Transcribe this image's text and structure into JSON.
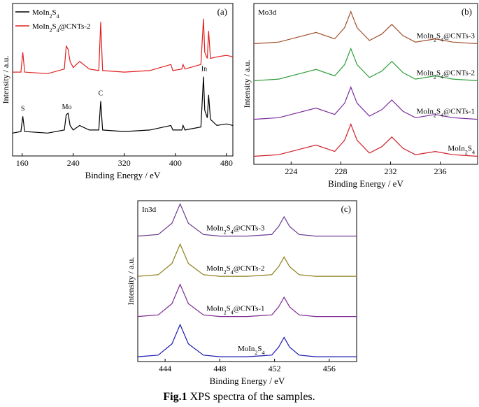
{
  "chart_data": [
    {
      "type": "line",
      "label": "(a)",
      "xlabel": "Binding Energy / eV",
      "ylabel": "Intensity / a.u.",
      "xlim": [
        145,
        490
      ],
      "xticks": [
        160,
        240,
        320,
        400,
        480
      ],
      "ylim": [
        0,
        100
      ],
      "legend": "upper left",
      "annotations": [
        {
          "text": "S",
          "x": 161
        },
        {
          "text": "Mo",
          "x": 230
        },
        {
          "text": "C",
          "x": 283
        },
        {
          "text": "In",
          "x": 445
        }
      ],
      "series": [
        {
          "name": "MoIn2S4",
          "color": "#000000",
          "x": [
            145,
            158,
            161,
            164,
            200,
            226,
            229,
            232,
            235,
            240,
            250,
            265,
            280,
            283,
            286,
            320,
            360,
            393,
            396,
            410,
            412,
            415,
            440,
            444,
            446,
            450,
            452,
            455,
            465,
            480,
            490
          ],
          "values": [
            15,
            16,
            26,
            16,
            15,
            17,
            27,
            28,
            20,
            17,
            20,
            17,
            17,
            36,
            17,
            16,
            17,
            20,
            17,
            17,
            20,
            17,
            19,
            52,
            30,
            25,
            40,
            24,
            20,
            21,
            20
          ]
        },
        {
          "name": "MoIn2S4@CNTs-2",
          "color": "#e02020",
          "x": [
            145,
            158,
            161,
            164,
            200,
            226,
            229,
            232,
            235,
            240,
            250,
            265,
            280,
            283,
            286,
            320,
            360,
            393,
            396,
            410,
            412,
            415,
            440,
            444,
            446,
            450,
            452,
            455,
            465,
            480,
            490
          ],
          "values": [
            55,
            55,
            68,
            55,
            54,
            57,
            72,
            70,
            62,
            58,
            62,
            57,
            56,
            88,
            56,
            55,
            56,
            60,
            56,
            57,
            60,
            57,
            60,
            90,
            68,
            64,
            82,
            64,
            65,
            66,
            65
          ]
        }
      ]
    },
    {
      "type": "line",
      "label": "(b)",
      "title": "Mo3d",
      "xlabel": "Binding Energy / eV",
      "ylabel": "Intensity / a.u.",
      "xlim": [
        221,
        239
      ],
      "xticks": [
        224,
        228,
        232,
        236
      ],
      "ylim": [
        0,
        100
      ],
      "series": [
        {
          "name": "MoIn2S4@CNTs-3",
          "color": "#a0522d",
          "x": [
            221,
            223,
            224.5,
            226,
            227.5,
            228.3,
            228.8,
            229.3,
            230.3,
            231.3,
            232.1,
            233,
            234,
            235.6,
            237,
            239
          ],
          "values": [
            75,
            76,
            79,
            82,
            78,
            85,
            95,
            85,
            77,
            81,
            87,
            80,
            76,
            78,
            76,
            75
          ]
        },
        {
          "name": "MoIn2S4@CNTs-2",
          "color": "#2e9e3a",
          "x": [
            221,
            223,
            224.5,
            226,
            227.5,
            228.3,
            228.8,
            229.3,
            230.3,
            231.3,
            232.1,
            233,
            234,
            235.6,
            237,
            239
          ],
          "values": [
            52,
            53,
            56,
            59,
            55,
            62,
            72,
            62,
            54,
            58,
            64,
            57,
            53,
            55,
            53,
            52
          ]
        },
        {
          "name": "MoIn2S4@CNTs-1",
          "color": "#7b2a9e",
          "x": [
            221,
            223,
            224.5,
            226,
            227.5,
            228.3,
            228.8,
            229.3,
            230.3,
            231.3,
            232.1,
            233,
            234,
            235.6,
            237,
            239
          ],
          "values": [
            28,
            29,
            32,
            35,
            31,
            38,
            48,
            38,
            30,
            34,
            40,
            33,
            29,
            31,
            29,
            28
          ]
        },
        {
          "name": "MoIn2S4",
          "color": "#d0202a",
          "x": [
            221,
            223,
            224.5,
            226,
            227.5,
            228.3,
            228.8,
            229.3,
            230.3,
            231.3,
            232.1,
            233,
            234,
            235.6,
            237,
            239
          ],
          "values": [
            5,
            6,
            9,
            12,
            8,
            15,
            25,
            15,
            7,
            11,
            17,
            10,
            6,
            8,
            6,
            5
          ]
        }
      ]
    },
    {
      "type": "line",
      "label": "(c)",
      "title": "In3d",
      "xlabel": "Binding Energy / eV",
      "ylabel": "Intensity / a.u.",
      "xlim": [
        442,
        458
      ],
      "xticks": [
        444,
        448,
        452,
        456
      ],
      "ylim": [
        0,
        100
      ],
      "series": [
        {
          "name": "MoIn2S4@CNTs-3",
          "color": "#6b3a8e",
          "x": [
            442,
            443.5,
            444.5,
            445.1,
            445.7,
            446.8,
            448,
            450,
            451.8,
            452.3,
            452.7,
            453.1,
            453.8,
            455,
            458
          ],
          "values": [
            78,
            79,
            86,
            98,
            86,
            79,
            78,
            78,
            79,
            84,
            90,
            84,
            79,
            78,
            78
          ]
        },
        {
          "name": "MoIn2S4@CNTs-2",
          "color": "#8b7d1a",
          "x": [
            442,
            443.5,
            444.5,
            445.1,
            445.7,
            446.8,
            448,
            450,
            451.8,
            452.3,
            452.7,
            453.1,
            453.8,
            455,
            458
          ],
          "values": [
            53,
            54,
            61,
            73,
            61,
            54,
            53,
            53,
            54,
            59,
            65,
            59,
            54,
            53,
            53
          ]
        },
        {
          "name": "MoIn2S4@CNTs-1",
          "color": "#7a2a90",
          "x": [
            442,
            443.5,
            444.5,
            445.1,
            445.7,
            446.8,
            448,
            450,
            451.8,
            452.3,
            452.7,
            453.1,
            453.8,
            455,
            458
          ],
          "values": [
            28,
            29,
            36,
            48,
            36,
            29,
            28,
            28,
            29,
            34,
            40,
            34,
            29,
            28,
            28
          ]
        },
        {
          "name": "MoIn2S4",
          "color": "#1a1ab0",
          "x": [
            442,
            443.5,
            444.5,
            445.1,
            445.7,
            446.8,
            448,
            450,
            451.8,
            452.3,
            452.7,
            453.1,
            453.8,
            455,
            458
          ],
          "values": [
            3,
            4,
            11,
            23,
            11,
            4,
            3,
            3,
            4,
            9,
            15,
            9,
            4,
            3,
            3
          ]
        }
      ]
    }
  ],
  "caption": {
    "label": "Fig.1",
    "text": "XPS spectra of the samples."
  }
}
